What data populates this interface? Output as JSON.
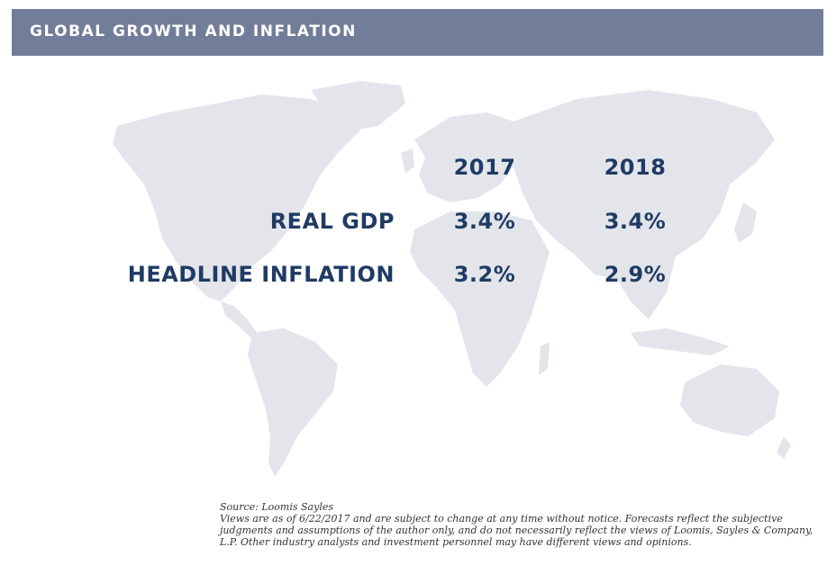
{
  "header": {
    "title": "GLOBAL GROWTH AND INFLATION"
  },
  "table": {
    "years": [
      "2017",
      "2018"
    ],
    "rows": [
      {
        "label": "REAL GDP",
        "values": [
          "3.4%",
          "3.4%"
        ]
      },
      {
        "label": "HEADLINE INFLATION",
        "values": [
          "3.2%",
          "2.9%"
        ]
      }
    ]
  },
  "footer": {
    "source": "Source: Loomis Sayles",
    "disclaimer": "Views are as of 6/22/2017 and are subject to change at any time without notice. Forecasts reflect the subjective judgments and assumptions of the author only, and do not necessarily reflect the views of Loomis, Sayles & Company, L.P. Other industry analysts and investment personnel may have different views and opinions."
  },
  "colors": {
    "header_bg": "#727d99",
    "text": "#1f3b64",
    "map": "#e3e5ea"
  }
}
